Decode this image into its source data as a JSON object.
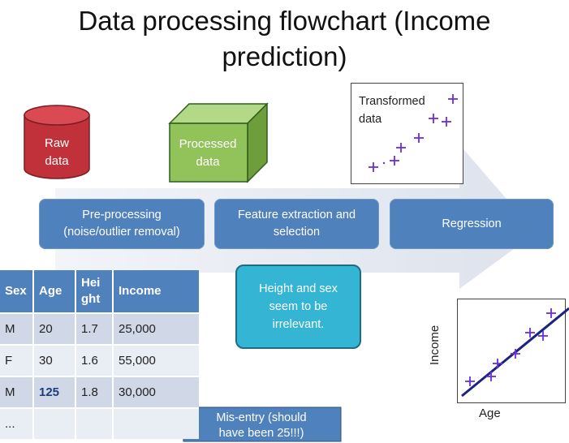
{
  "title_line1": "Data processing flowchart (Income",
  "title_line2": "prediction)",
  "raw_data": {
    "line1": "Raw",
    "line2": "data"
  },
  "processed_data": {
    "line1": "Processed",
    "line2": "data"
  },
  "transformed_data": {
    "line1": "Transformed",
    "line2": "data"
  },
  "stages": {
    "preprocessing": {
      "line1": "Pre-processing",
      "line2": "(noise/outlier removal)"
    },
    "feature": {
      "line1": "Feature extraction and",
      "line2": "selection"
    },
    "regression": {
      "line1": "Regression"
    }
  },
  "note": {
    "line1": "Height and sex",
    "line2": "seem to be",
    "line3": "irrelevant."
  },
  "table": {
    "headers": [
      "Sex",
      "Age",
      "Hei",
      "ght",
      "Income"
    ],
    "rows": [
      [
        "M",
        "20",
        "1.7",
        "25,000"
      ],
      [
        "F",
        "30",
        "1.6",
        "55,000"
      ],
      [
        "M",
        "125",
        "1.8",
        "30,000"
      ],
      [
        "...",
        "",
        "",
        ""
      ]
    ]
  },
  "callout": {
    "line1": "Mis-entry (should",
    "line2": "have been 25!!!)"
  },
  "regression_plot": {
    "xlabel": "Age",
    "ylabel": "Income"
  },
  "colors": {
    "stage_blue": "#4f81bd",
    "cylinder_red": "#c0313a",
    "cube_green": "#92c25a",
    "note_cyan": "#33b5d3",
    "marker_purple": "#6a2ee0",
    "arrow_gray": "#e4e7ee"
  }
}
